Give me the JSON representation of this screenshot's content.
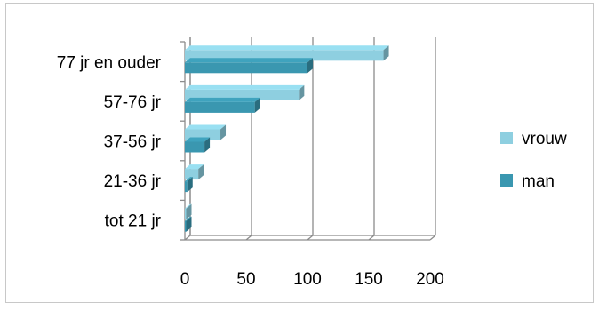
{
  "chart_data": {
    "type": "bar",
    "orientation": "horizontal",
    "style": "3d-clustered",
    "categories": [
      "77 jr en ouder",
      "57-76 jr",
      "37-56 jr",
      "21-36 jr",
      "tot 21 jr"
    ],
    "series": [
      {
        "name": "vrouw",
        "color": "#8ecfe0",
        "values": [
          162,
          93,
          29,
          11,
          1
        ]
      },
      {
        "name": "man",
        "color": "#3a97b0",
        "values": [
          100,
          57,
          16,
          2,
          1
        ]
      }
    ],
    "x_ticks": [
      "0",
      "50",
      "100",
      "150",
      "200"
    ],
    "xlim": [
      0,
      200
    ],
    "title": "",
    "xlabel": "",
    "ylabel": "",
    "grid": "vertical",
    "legend": "right"
  }
}
